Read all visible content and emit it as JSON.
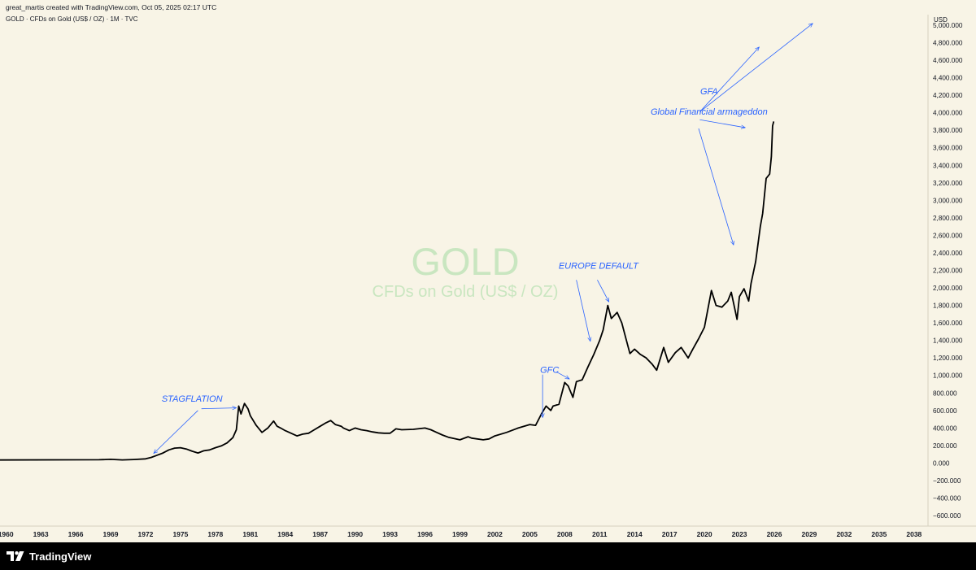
{
  "header": {
    "created_by": "great_martis created with TradingView.com, Oct 05, 2025 02:17 UTC",
    "symbol_line": "GOLD · CFDs on Gold (US$ / OZ) · 1M · TVC"
  },
  "watermark": {
    "ticker": "GOLD",
    "description": "CFDs on Gold (US$ / OZ)"
  },
  "footer": {
    "brand": "TradingView"
  },
  "colors": {
    "background": "#f8f4e6",
    "line": "#000000",
    "annotation": "#2962ff",
    "watermark": "#c9e6c0"
  },
  "chart_data": {
    "type": "line",
    "ylabel": "USD",
    "x_tick_labels": [
      "1960",
      "1963",
      "1966",
      "1969",
      "1972",
      "1975",
      "1978",
      "1981",
      "1984",
      "1987",
      "1990",
      "1993",
      "1996",
      "1999",
      "2002",
      "2005",
      "2008",
      "2011",
      "2014",
      "2017",
      "2020",
      "2023",
      "2026",
      "2029",
      "2032",
      "2035",
      "2038"
    ],
    "y_tick_labels": [
      "5,000.000",
      "4,800.000",
      "4,600.000",
      "4,400.000",
      "4,200.000",
      "4,000.000",
      "3,800.000",
      "3,600.000",
      "3,400.000",
      "3,200.000",
      "3,000.000",
      "2,800.000",
      "2,600.000",
      "2,400.000",
      "2,200.000",
      "2,000.000",
      "1,800.000",
      "1,600.000",
      "1,400.000",
      "1,200.000",
      "1,000.000",
      "800.000",
      "600.000",
      "400.000",
      "200.000",
      "0.000",
      "−200.000",
      "−400.000",
      "−600.000"
    ],
    "xlim": [
      1959.5,
      2039.2
    ],
    "ylim": [
      -720,
      5120
    ],
    "series": [
      {
        "points": [
          [
            1959.5,
            35
          ],
          [
            1968.0,
            38
          ],
          [
            1969.0,
            42
          ],
          [
            1970.0,
            36
          ],
          [
            1971.0,
            40
          ],
          [
            1972.0,
            48
          ],
          [
            1972.5,
            65
          ],
          [
            1973.0,
            90
          ],
          [
            1973.5,
            115
          ],
          [
            1974.0,
            150
          ],
          [
            1974.5,
            170
          ],
          [
            1975.0,
            175
          ],
          [
            1975.5,
            160
          ],
          [
            1976.0,
            135
          ],
          [
            1976.5,
            115
          ],
          [
            1977.0,
            140
          ],
          [
            1977.5,
            150
          ],
          [
            1978.0,
            175
          ],
          [
            1978.5,
            195
          ],
          [
            1979.0,
            230
          ],
          [
            1979.5,
            290
          ],
          [
            1979.8,
            380
          ],
          [
            1980.0,
            650
          ],
          [
            1980.2,
            560
          ],
          [
            1980.5,
            680
          ],
          [
            1980.8,
            620
          ],
          [
            1981.0,
            540
          ],
          [
            1981.5,
            430
          ],
          [
            1982.0,
            350
          ],
          [
            1982.5,
            400
          ],
          [
            1983.0,
            480
          ],
          [
            1983.3,
            420
          ],
          [
            1983.6,
            400
          ],
          [
            1984.0,
            370
          ],
          [
            1984.5,
            340
          ],
          [
            1985.0,
            310
          ],
          [
            1985.5,
            330
          ],
          [
            1986.0,
            340
          ],
          [
            1986.5,
            380
          ],
          [
            1987.0,
            420
          ],
          [
            1987.5,
            460
          ],
          [
            1987.9,
            485
          ],
          [
            1988.3,
            440
          ],
          [
            1988.8,
            420
          ],
          [
            1989.0,
            400
          ],
          [
            1989.5,
            370
          ],
          [
            1990.0,
            400
          ],
          [
            1990.5,
            380
          ],
          [
            1991.0,
            370
          ],
          [
            1991.5,
            355
          ],
          [
            1992.0,
            345
          ],
          [
            1992.5,
            340
          ],
          [
            1993.0,
            340
          ],
          [
            1993.5,
            390
          ],
          [
            1994.0,
            380
          ],
          [
            1995.0,
            385
          ],
          [
            1996.0,
            400
          ],
          [
            1996.5,
            380
          ],
          [
            1997.0,
            350
          ],
          [
            1997.5,
            320
          ],
          [
            1998.0,
            295
          ],
          [
            1999.0,
            265
          ],
          [
            1999.7,
            300
          ],
          [
            2000.0,
            285
          ],
          [
            2001.0,
            265
          ],
          [
            2001.5,
            275
          ],
          [
            2002.0,
            310
          ],
          [
            2003.0,
            350
          ],
          [
            2004.0,
            400
          ],
          [
            2005.0,
            440
          ],
          [
            2005.5,
            430
          ],
          [
            2006.0,
            560
          ],
          [
            2006.4,
            650
          ],
          [
            2006.8,
            600
          ],
          [
            2007.0,
            650
          ],
          [
            2007.5,
            670
          ],
          [
            2008.0,
            920
          ],
          [
            2008.3,
            880
          ],
          [
            2008.7,
            750
          ],
          [
            2009.0,
            930
          ],
          [
            2009.5,
            950
          ],
          [
            2010.0,
            1100
          ],
          [
            2010.5,
            1240
          ],
          [
            2011.0,
            1400
          ],
          [
            2011.3,
            1520
          ],
          [
            2011.7,
            1800
          ],
          [
            2012.0,
            1650
          ],
          [
            2012.5,
            1720
          ],
          [
            2012.9,
            1600
          ],
          [
            2013.3,
            1400
          ],
          [
            2013.6,
            1250
          ],
          [
            2014.0,
            1300
          ],
          [
            2014.5,
            1240
          ],
          [
            2015.0,
            1200
          ],
          [
            2015.5,
            1130
          ],
          [
            2015.9,
            1060
          ],
          [
            2016.5,
            1320
          ],
          [
            2016.9,
            1150
          ],
          [
            2017.5,
            1260
          ],
          [
            2018.0,
            1320
          ],
          [
            2018.6,
            1200
          ],
          [
            2019.0,
            1300
          ],
          [
            2019.5,
            1420
          ],
          [
            2020.0,
            1550
          ],
          [
            2020.6,
            1970
          ],
          [
            2021.0,
            1800
          ],
          [
            2021.5,
            1780
          ],
          [
            2022.0,
            1850
          ],
          [
            2022.3,
            1950
          ],
          [
            2022.8,
            1640
          ],
          [
            2023.0,
            1900
          ],
          [
            2023.4,
            1990
          ],
          [
            2023.8,
            1850
          ],
          [
            2024.0,
            2050
          ],
          [
            2024.4,
            2300
          ],
          [
            2024.8,
            2700
          ],
          [
            2025.0,
            2850
          ],
          [
            2025.3,
            3250
          ],
          [
            2025.6,
            3300
          ],
          [
            2025.75,
            3500
          ],
          [
            2025.85,
            3850
          ],
          [
            2025.95,
            3900
          ]
        ]
      }
    ],
    "annotations": [
      {
        "text": "STAGFLATION",
        "x": 1976.0,
        "y": 700
      },
      {
        "text": "GFC",
        "x": 2006.7,
        "y": 1030
      },
      {
        "text": "EUROPE DEFAULT",
        "x": 2010.9,
        "y": 2220
      },
      {
        "text": "GFA",
        "x": 2020.4,
        "y": 4210
      },
      {
        "text": "Global Financial armageddon",
        "x": 2020.4,
        "y": 3980
      }
    ],
    "arrows": [
      {
        "from": [
          1976.5,
          600
        ],
        "to": [
          1972.7,
          110
        ]
      },
      {
        "from": [
          1976.8,
          620
        ],
        "to": [
          1979.8,
          630
        ]
      },
      {
        "from": [
          2006.1,
          1010
        ],
        "to": [
          2006.1,
          520
        ]
      },
      {
        "from": [
          2007.3,
          1040
        ],
        "to": [
          2008.4,
          960
        ]
      },
      {
        "from": [
          2009.0,
          2090
        ],
        "to": [
          2010.2,
          1390
        ]
      },
      {
        "from": [
          2010.8,
          2090
        ],
        "to": [
          2011.8,
          1840
        ]
      },
      {
        "from": [
          2019.6,
          4010
        ],
        "to": [
          2024.7,
          4750
        ]
      },
      {
        "from": [
          2019.6,
          4010
        ],
        "to": [
          2029.3,
          5020
        ]
      },
      {
        "from": [
          2019.6,
          3920
        ],
        "to": [
          2023.5,
          3830
        ]
      },
      {
        "from": [
          2019.5,
          3820
        ],
        "to": [
          2022.5,
          2490
        ]
      }
    ]
  }
}
